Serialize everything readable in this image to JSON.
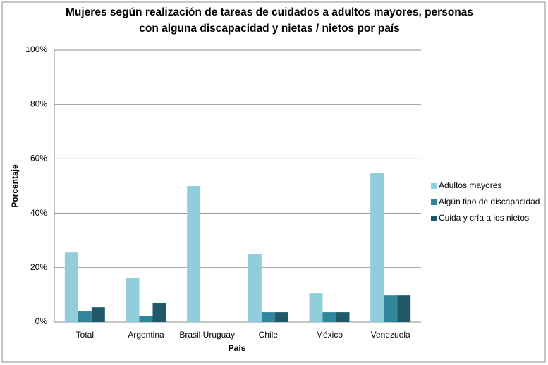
{
  "chart_data": {
    "type": "bar",
    "title": [
      "Mujeres según realización de tareas de cuidados a adultos mayores, personas",
      "con alguna discapacidad y nietas / nietos por país"
    ],
    "xlabel": "País",
    "ylabel": "Porcentaje",
    "categories": [
      "Total",
      "Argentina",
      "Brasil Uruguay",
      "Chile",
      "México",
      "Venezuela"
    ],
    "series": [
      {
        "name": "Adultos mayores",
        "color": "#92cddc",
        "values": [
          25.6,
          16.1,
          50,
          24.9,
          10.6,
          54.9
        ]
      },
      {
        "name": "Algún tipo de discapacidad",
        "color": "#31859c",
        "values": [
          3.9,
          2.1,
          0,
          3.6,
          3.6,
          9.8
        ]
      },
      {
        "name": "Cuida y  cría  a los nietos",
        "color": "#215968",
        "values": [
          5.4,
          7,
          0,
          3.6,
          3.6,
          9.8
        ]
      }
    ],
    "ylim": [
      0,
      100
    ],
    "yticks": [
      {
        "value": 0,
        "label": "0%"
      },
      {
        "value": 20,
        "label": "20%"
      },
      {
        "value": 40,
        "label": "40%"
      },
      {
        "value": 60,
        "label": "60%"
      },
      {
        "value": 80,
        "label": "80%"
      },
      {
        "value": 100,
        "label": "100%"
      }
    ],
    "grid": true,
    "legend": "right"
  }
}
